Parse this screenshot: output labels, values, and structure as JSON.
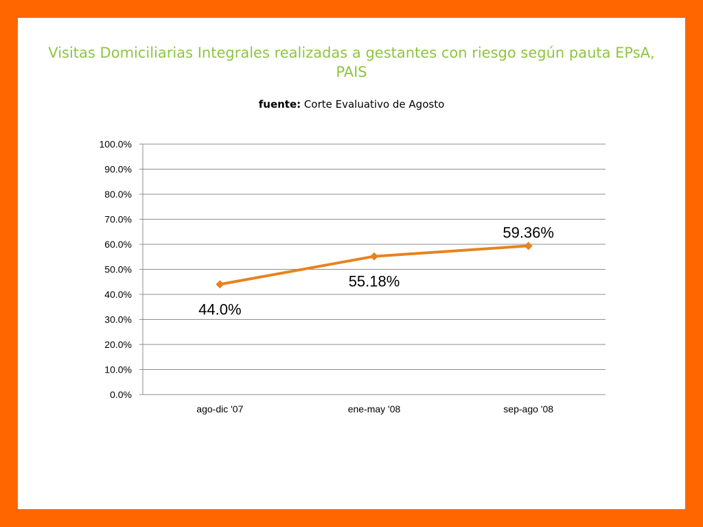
{
  "slide": {
    "title": "Visitas Domiciliarias Integrales realizadas a gestantes con riesgo según pauta EPsA, PAIS",
    "source_label": "fuente:",
    "source_text": "Corte Evaluativo de Agosto"
  },
  "colors": {
    "frame": "#ff6600",
    "title": "#8dc63f",
    "line": "#e8821e",
    "grid": "#8c8c8c"
  },
  "chart_data": {
    "type": "line",
    "title": "",
    "xlabel": "",
    "ylabel": "",
    "categories": [
      "ago-dic '07",
      "ene-may '08",
      "sep-ago '08"
    ],
    "series": [
      {
        "values": [
          44.0,
          55.18,
          59.36
        ],
        "data_labels": [
          "44.0%",
          "55.18%",
          "59.36%"
        ],
        "data_label_position": [
          "below",
          "below",
          "above"
        ]
      }
    ],
    "ylim": [
      0,
      100
    ],
    "yticks": [
      0,
      10,
      20,
      30,
      40,
      50,
      60,
      70,
      80,
      90,
      100
    ],
    "ytick_labels": [
      "0.0%",
      "10.0%",
      "20.0%",
      "30.0%",
      "40.0%",
      "50.0%",
      "60.0%",
      "70.0%",
      "80.0%",
      "90.0%",
      "100.0%"
    ],
    "grid": true,
    "legend": false,
    "marker": "diamond"
  }
}
